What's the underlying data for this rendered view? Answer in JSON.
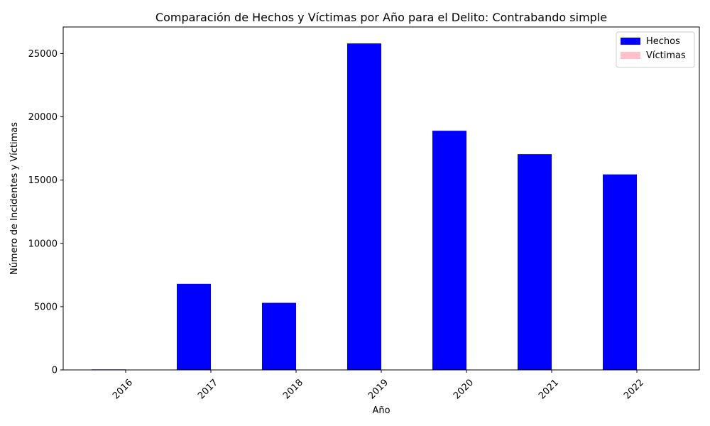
{
  "chart_data": {
    "type": "bar",
    "title": "Comparación de Hechos y Víctimas por Año para el Delito: Contrabando simple",
    "xlabel": "Año",
    "ylabel": "Número de Incidentes y Víctimas",
    "categories": [
      "2016",
      "2017",
      "2018",
      "2019",
      "2020",
      "2021",
      "2022"
    ],
    "series": [
      {
        "name": "Hechos",
        "color": "#0000ff",
        "values": [
          40,
          6800,
          5300,
          25800,
          18900,
          17050,
          15450
        ]
      },
      {
        "name": "Víctimas",
        "color": "#ffc0cb",
        "values": [
          0,
          0,
          0,
          0,
          0,
          0,
          0
        ]
      }
    ],
    "ylim": [
      0,
      27100
    ],
    "yticks": [
      0,
      5000,
      10000,
      15000,
      20000,
      25000
    ],
    "ytick_labels": [
      "0",
      "5000",
      "10000",
      "15000",
      "20000",
      "25000"
    ],
    "grid": false,
    "legend": "top-right"
  }
}
